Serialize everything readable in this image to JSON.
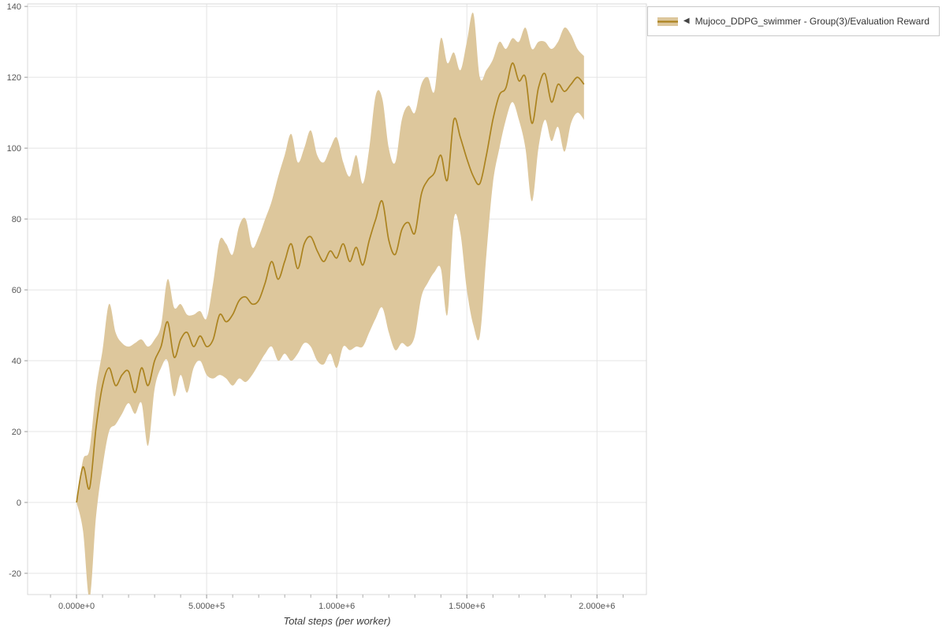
{
  "legend": {
    "collapse_icon": "◀",
    "label": "Mujoco_DDPG_swimmer - Group(3)/Evaluation Reward"
  },
  "colors": {
    "line": "#ab831f",
    "band": "#ddc79c",
    "grid": "#e4e4e4",
    "plot_border": "#d9d9d9",
    "tick": "#999999",
    "axis_text": "#555555",
    "title_text": "#3c3c3c",
    "legend_border": "#c9c9c9",
    "background": "#ffffff"
  },
  "chart_data": {
    "type": "line",
    "title": "",
    "xlabel": "Total steps (per worker)",
    "ylabel": "",
    "legend_position": "top-right",
    "grid": true,
    "xlim": [
      -188000,
      2190000
    ],
    "ylim": [
      -26,
      140.7
    ],
    "x_minor_tick_step": 100000,
    "x_minor_tick_start": -100000,
    "x_ticks": [
      {
        "value": 0,
        "label": "0.000e+0"
      },
      {
        "value": 500000,
        "label": "5.000e+5"
      },
      {
        "value": 1000000,
        "label": "1.000e+6"
      },
      {
        "value": 1500000,
        "label": "1.500e+6"
      },
      {
        "value": 2000000,
        "label": "2.000e+6"
      }
    ],
    "y_ticks": [
      {
        "value": -20,
        "label": "-20"
      },
      {
        "value": 0,
        "label": "0"
      },
      {
        "value": 20,
        "label": "20"
      },
      {
        "value": 40,
        "label": "40"
      },
      {
        "value": 60,
        "label": "60"
      },
      {
        "value": 80,
        "label": "80"
      },
      {
        "value": 100,
        "label": "100"
      },
      {
        "value": 120,
        "label": "120"
      },
      {
        "value": 140,
        "label": "140"
      }
    ],
    "series": [
      {
        "name": "Mujoco_DDPG_swimmer - Group(3)/Evaluation Reward",
        "x_kilosteps": [
          0,
          25,
          50,
          75,
          100,
          125,
          150,
          175,
          200,
          225,
          250,
          275,
          300,
          325,
          350,
          375,
          400,
          425,
          450,
          475,
          500,
          525,
          550,
          575,
          600,
          625,
          650,
          675,
          700,
          725,
          750,
          775,
          800,
          825,
          850,
          875,
          900,
          925,
          950,
          975,
          1000,
          1025,
          1050,
          1075,
          1100,
          1125,
          1150,
          1175,
          1200,
          1225,
          1250,
          1275,
          1300,
          1325,
          1350,
          1375,
          1400,
          1425,
          1450,
          1475,
          1500,
          1525,
          1550,
          1575,
          1600,
          1625,
          1650,
          1675,
          1700,
          1725,
          1750,
          1775,
          1800,
          1825,
          1850,
          1875,
          1900,
          1925,
          1950
        ],
        "mean": [
          0,
          10,
          4,
          21,
          33,
          38,
          33,
          36,
          37,
          31,
          38,
          33,
          40,
          44,
          51,
          41,
          46,
          48,
          44,
          47,
          44,
          46,
          53,
          51,
          53,
          57,
          58,
          56,
          57,
          62,
          68,
          63,
          68,
          73,
          66,
          73,
          75,
          71,
          68,
          71,
          69,
          73,
          68,
          72,
          67,
          74,
          80,
          85,
          74,
          70,
          77,
          79,
          76,
          87,
          91,
          93,
          98,
          91,
          108,
          103,
          97,
          92,
          90,
          98,
          108,
          115,
          117,
          124,
          119,
          120,
          107,
          117,
          121,
          113,
          118,
          116,
          118,
          120,
          118
        ],
        "low": [
          0,
          -8,
          -27,
          -4,
          10,
          20,
          22,
          25,
          28,
          25,
          28,
          16,
          32,
          38,
          40,
          30,
          36,
          31,
          38,
          40,
          36,
          35,
          36,
          35,
          33,
          35,
          34,
          36,
          39,
          42,
          44,
          40,
          42,
          40,
          42,
          45,
          44,
          40,
          39,
          42,
          38,
          44,
          43,
          44,
          44,
          48,
          52,
          55,
          48,
          43,
          45,
          44,
          47,
          58,
          62,
          65,
          66,
          53,
          80,
          76,
          60,
          50,
          47,
          70,
          90,
          100,
          108,
          113,
          108,
          100,
          85,
          100,
          108,
          102,
          106,
          99,
          107,
          110,
          108
        ],
        "high": [
          0,
          12,
          15,
          32,
          43,
          56,
          48,
          45,
          44,
          45,
          46,
          44,
          46,
          50,
          63,
          55,
          56,
          53,
          53,
          54,
          52,
          62,
          74,
          73,
          70,
          78,
          80,
          72,
          75,
          80,
          85,
          92,
          98,
          104,
          96,
          100,
          105,
          98,
          96,
          100,
          103,
          96,
          92,
          98,
          90,
          100,
          115,
          114,
          100,
          96,
          108,
          112,
          110,
          118,
          120,
          116,
          131,
          124,
          127,
          122,
          130,
          138,
          120,
          122,
          125,
          130,
          128,
          131,
          130,
          134,
          128,
          130,
          130,
          128,
          130,
          134,
          132,
          128,
          126
        ]
      }
    ]
  }
}
